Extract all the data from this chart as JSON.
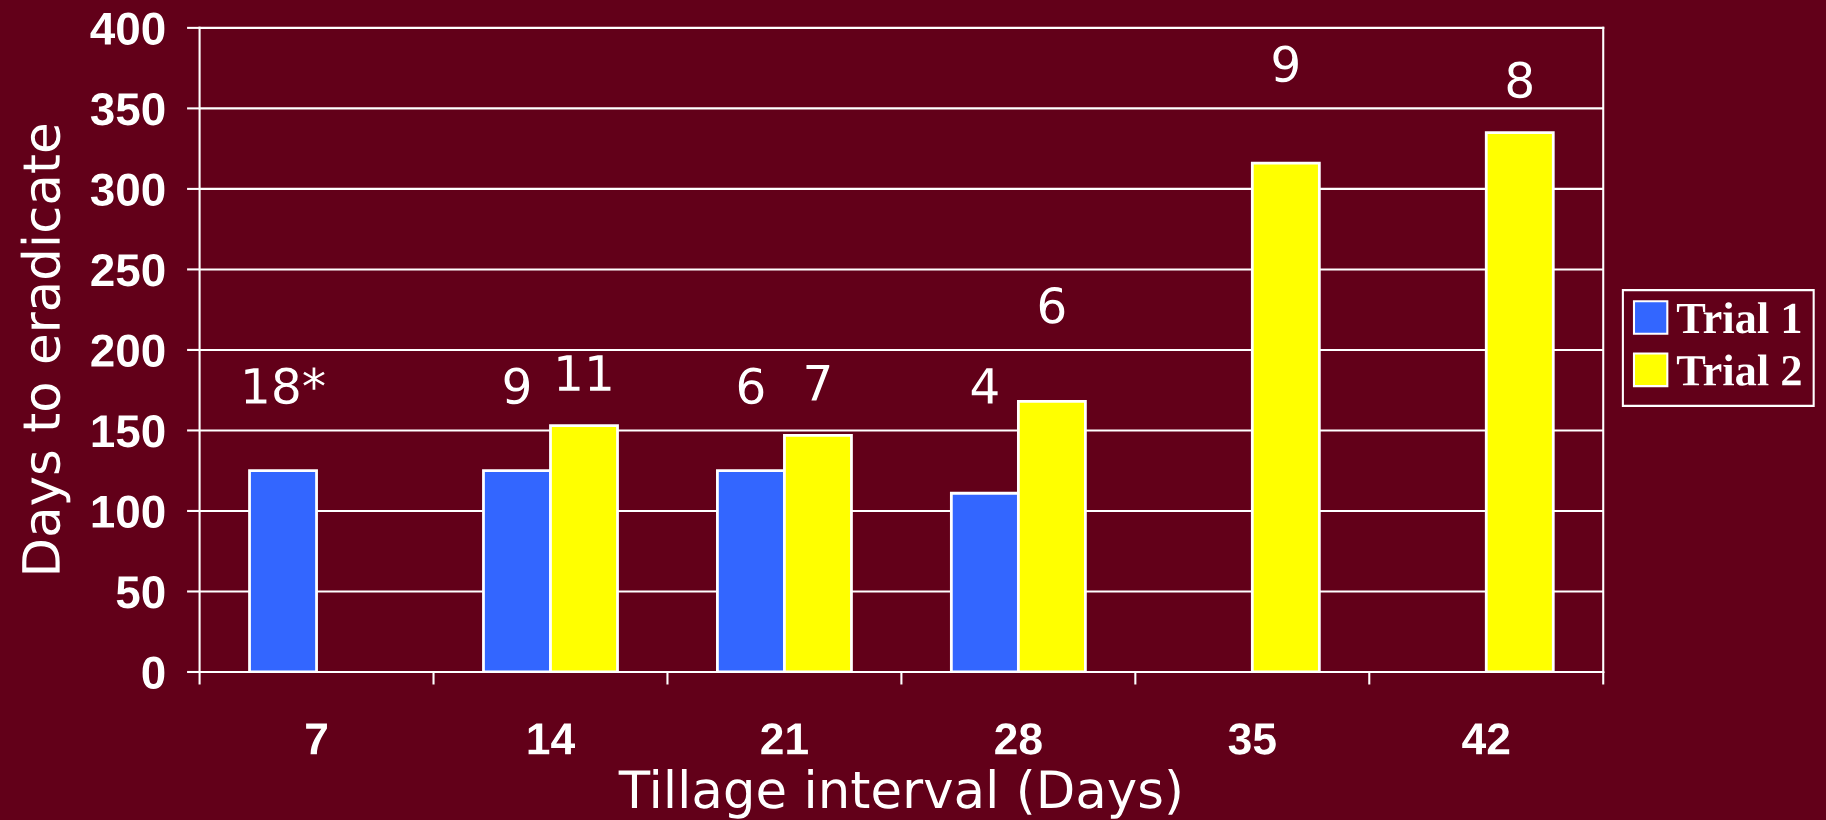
{
  "chart_data": {
    "type": "bar",
    "xlabel": "Tillage interval (Days)",
    "ylabel": "Days to eradicate",
    "categories": [
      "7",
      "14",
      "21",
      "28",
      "35",
      "42"
    ],
    "series": [
      {
        "name": "Trial 1",
        "color": "#3366ff",
        "values": [
          125,
          125,
          125,
          111,
          null,
          null
        ]
      },
      {
        "name": "Trial 2",
        "color": "#ffff00",
        "values": [
          null,
          153,
          147,
          168,
          316,
          335
        ]
      }
    ],
    "annotations": [
      {
        "text": "18*",
        "x": "7",
        "y": 125
      },
      {
        "text": "9",
        "x": "14",
        "y": 125
      },
      {
        "text": "11",
        "x": "14",
        "y": 153
      },
      {
        "text": "6",
        "x": "21",
        "y": 125
      },
      {
        "text": "7",
        "x": "21",
        "y": 147
      },
      {
        "text": "4",
        "x": "28",
        "y": 111
      },
      {
        "text": "6",
        "x": "28",
        "y": 168
      },
      {
        "text": "9",
        "x": "35",
        "y": 316
      },
      {
        "text": "8",
        "x": "42",
        "y": 335
      }
    ],
    "ylim": [
      0,
      400
    ],
    "yticks": [
      0,
      50,
      100,
      150,
      200,
      250,
      300,
      350,
      400
    ],
    "grid": "y",
    "legend": "right"
  }
}
